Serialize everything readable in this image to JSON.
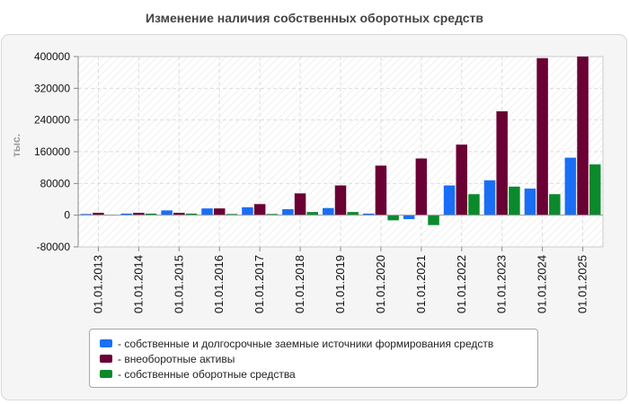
{
  "chart_data": {
    "type": "bar",
    "title": "Изменение наличия собственных оборотных средств",
    "ylabel": "тыс.",
    "xlabel": "",
    "ylim": [
      -80000,
      400000
    ],
    "yticks": [
      {
        "value": 400000,
        "label": "400000"
      },
      {
        "value": 320000,
        "label": "320000"
      },
      {
        "value": 240000,
        "label": "240000"
      },
      {
        "value": 160000,
        "label": "160000"
      },
      {
        "value": 80000,
        "label": "80000"
      },
      {
        "value": 0,
        "label": "0"
      },
      {
        "value": -80000,
        "label": "-80000"
      }
    ],
    "categories": [
      "01.01.2013",
      "01.01.2014",
      "01.01.2015",
      "01.01.2016",
      "01.01.2017",
      "01.01.2018",
      "01.01.2019",
      "01.01.2020",
      "01.01.2021",
      "01.01.2022",
      "01.01.2023",
      "01.01.2024",
      "01.01.2025"
    ],
    "series": [
      {
        "name": "- собственные и долгосрочные заемные источники формирования средств",
        "color": "#1a6ef5",
        "values": [
          3000,
          4000,
          12000,
          17000,
          20000,
          15000,
          18000,
          4000,
          -10000,
          75000,
          88000,
          67000,
          145000
        ]
      },
      {
        "name": "- внеоборотные активы",
        "color": "#6a0034",
        "values": [
          6000,
          6000,
          6000,
          17000,
          28000,
          55000,
          75000,
          125000,
          143000,
          178000,
          262000,
          396000,
          400000
        ]
      },
      {
        "name": "- собственные оборотные средства",
        "color": "#0b8a2c",
        "values": [
          1000,
          4000,
          4000,
          3000,
          3000,
          8000,
          8000,
          -13000,
          -25000,
          53000,
          72000,
          53000,
          128000
        ]
      }
    ],
    "grid": true,
    "legend_position": "bottom"
  }
}
